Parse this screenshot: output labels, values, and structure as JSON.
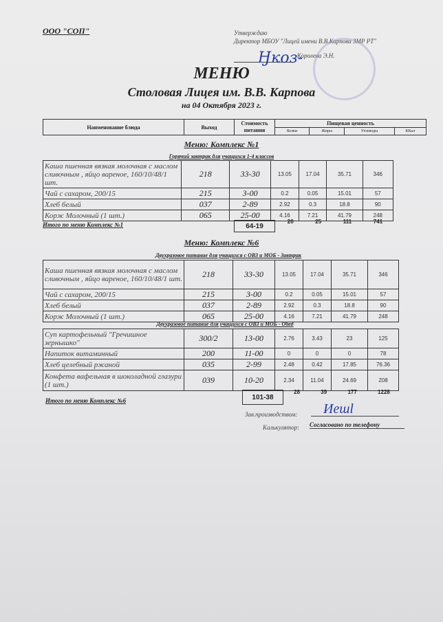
{
  "header": {
    "org": "ООО \"СОП\"",
    "approve_label": "Утверждаю",
    "approve_position": "Директор МБОУ \"Лицей имени В.В.Карпова ЗМР РТ\"",
    "approve_name": "Королева Э.Н.",
    "title": "МЕНЮ",
    "subtitle": "Столовая Лицея им. В.В. Карпова",
    "date": "на 04 Октября 2023 г."
  },
  "columns": {
    "name": "Наименование блюда",
    "output": "Выход",
    "cost": "Стоимость питания",
    "nutrition": "Пищевая ценность",
    "protein": "Белки",
    "fat": "Жиры",
    "carbs": "Углеводы",
    "kcal": "ККал"
  },
  "complex1": {
    "title": "Меню: Комплекс №1",
    "section": "Горячий завтрак для учащихся 1-4 классов",
    "rows": [
      {
        "name": "Каша пшенная вязкая молочная с маслом сливочным , яйцо вареное, 160/10/48/1 шт.",
        "output": "218",
        "cost": "33-30",
        "protein": "13.05",
        "fat": "17.04",
        "carbs": "35.71",
        "kcal": "346"
      },
      {
        "name": "Чай с сахаром, 200/15",
        "output": "215",
        "cost": "3-00",
        "protein": "0.2",
        "fat": "0.05",
        "carbs": "15.01",
        "kcal": "57"
      },
      {
        "name": "Хлеб белый",
        "output": "037",
        "cost": "2-89",
        "protein": "2.92",
        "fat": "0.3",
        "carbs": "18.8",
        "kcal": "90"
      },
      {
        "name": "Корж Молочный (1 шт.)",
        "output": "065",
        "cost": "25-00",
        "protein": "4.16",
        "fat": "7.21",
        "carbs": "41.79",
        "kcal": "248"
      }
    ],
    "total": {
      "label": "Итого по меню Комплекс №1",
      "cost": "64-19",
      "protein": "20",
      "fat": "25",
      "carbs": "111",
      "kcal": "741"
    }
  },
  "complex6": {
    "title": "Меню: Комплекс №6",
    "section_breakfast": "Двухразовое питание для учащихся с ОВЗ и МОБ - Завтрак",
    "breakfast": [
      {
        "name": "Каша пшенная вязкая молочная с маслом сливочным , яйцо вареное, 160/10/48/1 шт.",
        "output": "218",
        "cost": "33-30",
        "protein": "13.05",
        "fat": "17.04",
        "carbs": "35.71",
        "kcal": "346"
      },
      {
        "name": "Чай с сахаром, 200/15",
        "output": "215",
        "cost": "3-00",
        "protein": "0.2",
        "fat": "0.05",
        "carbs": "15.01",
        "kcal": "57"
      },
      {
        "name": "Хлеб белый",
        "output": "037",
        "cost": "2-89",
        "protein": "2.92",
        "fat": "0.3",
        "carbs": "18.8",
        "kcal": "90"
      },
      {
        "name": "Корж Молочный (1 шт.)",
        "output": "065",
        "cost": "25-00",
        "protein": "4.16",
        "fat": "7.21",
        "carbs": "41.79",
        "kcal": "248"
      }
    ],
    "section_lunch": "Двухразовое питание для учащихся с ОВЗ и МОБ - Обед",
    "lunch": [
      {
        "name": "Суп картофельный \"Гречишное зернышко\"",
        "output": "300/2",
        "cost": "13-00",
        "protein": "2.76",
        "fat": "3.43",
        "carbs": "23",
        "kcal": "125"
      },
      {
        "name": "Напиток витаминный",
        "output": "200",
        "cost": "11-00",
        "protein": "0",
        "fat": "0",
        "carbs": "0",
        "kcal": "78"
      },
      {
        "name": "Хлеб  целебный ржаной",
        "output": "035",
        "cost": "2-99",
        "protein": "2.48",
        "fat": "0.42",
        "carbs": "17.85",
        "kcal": "76.36"
      },
      {
        "name": "Конфета вафельная в шоколадной глазури (1 шт.)",
        "output": "039",
        "cost": "10-20",
        "protein": "2.34",
        "fat": "11.04",
        "carbs": "24.69",
        "kcal": "208"
      }
    ],
    "total": {
      "label": "Итого по меню Комплекс №6",
      "cost": "101-38",
      "protein": "28",
      "fat": "39",
      "carbs": "177",
      "kcal": "1228"
    }
  },
  "footer": {
    "production_label": "Зав.производством:",
    "calculator_label": "Калькулятор:",
    "calculator_value": "Согласовано по телефону"
  }
}
